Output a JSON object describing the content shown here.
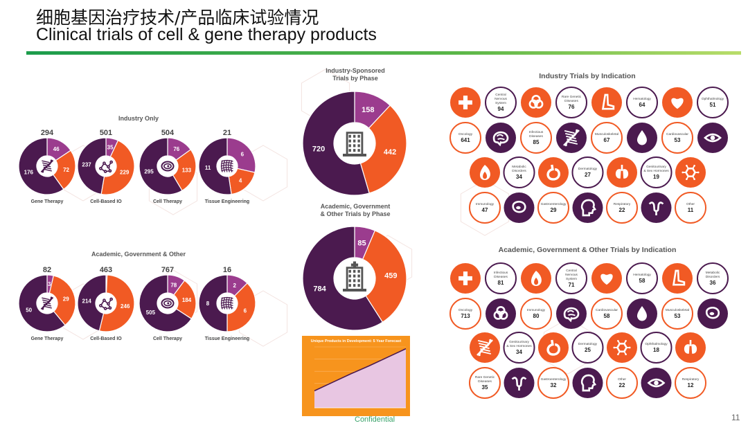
{
  "slide": {
    "title_cn": "细胞基因治疗技术/产品临床试验情况",
    "title_en": "Clinical trials of cell & gene therapy products",
    "confidential": "Confidential",
    "page_number": "11"
  },
  "colors": {
    "purple": "#4b1a4f",
    "orange": "#f15a24",
    "magenta": "#9b3c8e",
    "rule_green": "#3aa34a"
  },
  "chart_data": [
    {
      "id": "industry-only",
      "type": "pie",
      "title": "Industry Only",
      "charts": [
        {
          "label": "Gene Therapy",
          "total": 294,
          "icon": "dna-icon",
          "slices": [
            {
              "value": 46,
              "color": "#9b3c8e"
            },
            {
              "value": 72,
              "color": "#f15a24"
            },
            {
              "value": 176,
              "color": "#4b1a4f"
            }
          ]
        },
        {
          "label": "Cell-Based IO",
          "total": 501,
          "icon": "molecule-icon",
          "slices": [
            {
              "value": 35,
              "color": "#9b3c8e"
            },
            {
              "value": 229,
              "color": "#f15a24"
            },
            {
              "value": 237,
              "color": "#4b1a4f"
            }
          ]
        },
        {
          "label": "Cell Therapy",
          "total": 504,
          "icon": "cell-icon",
          "slices": [
            {
              "value": 76,
              "color": "#9b3c8e"
            },
            {
              "value": 133,
              "color": "#f15a24"
            },
            {
              "value": 295,
              "color": "#4b1a4f"
            }
          ]
        },
        {
          "label": "Tissue Engineering",
          "total": 21,
          "icon": "tissue-icon",
          "slices": [
            {
              "value": 6,
              "color": "#9b3c8e"
            },
            {
              "value": 4,
              "color": "#f15a24"
            },
            {
              "value": 11,
              "color": "#4b1a4f"
            }
          ]
        }
      ]
    },
    {
      "id": "academic-other",
      "type": "pie",
      "title": "Academic, Government & Other",
      "charts": [
        {
          "label": "Gene Therapy",
          "total": 82,
          "icon": "dna-icon",
          "slices": [
            {
              "value": 3,
              "color": "#9b3c8e"
            },
            {
              "value": 29,
              "color": "#f15a24"
            },
            {
              "value": 50,
              "color": "#4b1a4f"
            }
          ]
        },
        {
          "label": "Cell-Based IO",
          "total": 463,
          "icon": "molecule-icon",
          "slices": [
            {
              "value": 3,
              "color": "#9b3c8e"
            },
            {
              "value": 246,
              "color": "#f15a24"
            },
            {
              "value": 214,
              "color": "#4b1a4f"
            }
          ]
        },
        {
          "label": "Cell Therapy",
          "total": 767,
          "icon": "cell-icon",
          "slices": [
            {
              "value": 78,
              "color": "#9b3c8e"
            },
            {
              "value": 184,
              "color": "#f15a24"
            },
            {
              "value": 505,
              "color": "#4b1a4f"
            }
          ]
        },
        {
          "label": "Tissue Engineering",
          "total": 16,
          "icon": "tissue-icon",
          "slices": [
            {
              "value": 2,
              "color": "#9b3c8e"
            },
            {
              "value": 6,
              "color": "#f15a24"
            },
            {
              "value": 8,
              "color": "#4b1a4f"
            }
          ]
        }
      ]
    },
    {
      "id": "industry-phase",
      "type": "pie",
      "title": "Industry-Sponsored\nTrials by Phase",
      "icon": "building-icon",
      "slices": [
        {
          "value": 158,
          "color": "#9b3c8e"
        },
        {
          "value": 442,
          "color": "#f15a24"
        },
        {
          "value": 720,
          "color": "#4b1a4f"
        }
      ]
    },
    {
      "id": "academic-phase",
      "type": "pie",
      "title": "Academic, Government\n& Other Trials by Phase",
      "icon": "hospital-icon",
      "slices": [
        {
          "value": 85,
          "color": "#9b3c8e"
        },
        {
          "value": 459,
          "color": "#f15a24"
        },
        {
          "value": 784,
          "color": "#4b1a4f"
        }
      ]
    },
    {
      "id": "forecast",
      "type": "area",
      "title": "Unique Products in Development: 5 Year Forecast",
      "x": [
        0,
        1,
        2,
        3,
        4,
        5
      ],
      "values": [
        0.28,
        0.42,
        0.56,
        0.69,
        0.83,
        0.97
      ],
      "ylim": [
        0,
        1
      ]
    },
    {
      "id": "industry-indication",
      "type": "table",
      "title": "Industry Trials by Indication",
      "rows": [
        {
          "icons": [
            "medical-cross-icon",
            "biohazard-icon",
            "foot-icon",
            "heart-icon"
          ],
          "items": [
            {
              "label": "Oncology",
              "value": "641"
            },
            {
              "label": "Central\nNervous\nSystem",
              "value": "94"
            },
            {
              "label": "Infectious\nDiseases",
              "value": "85"
            },
            {
              "label": "Rare Genetic\nDiseases",
              "value": "76"
            },
            {
              "label": "Musculoskeletal",
              "value": "67"
            },
            {
              "label": "Hematology",
              "value": "64"
            },
            {
              "label": "Cardiovascular",
              "value": "53"
            },
            {
              "label": "Ophthalmology",
              "value": "51"
            }
          ]
        },
        {
          "icons": [
            "flame-icon",
            "stomach-icon",
            "lungs-icon",
            "hexagon-molecule-icon"
          ],
          "items": [
            {
              "label": "Immunology",
              "value": "47"
            },
            {
              "label": "Metabolic\nDisorders",
              "value": "34"
            },
            {
              "label": "Gastroenterology",
              "value": "29"
            },
            {
              "label": "Dermatology",
              "value": "27"
            },
            {
              "label": "Respiratory",
              "value": "22"
            },
            {
              "label": "Genitourinary\n& Sex Hormones",
              "value": "19"
            },
            {
              "label": "Other",
              "value": "11"
            }
          ]
        }
      ]
    },
    {
      "id": "academic-indication",
      "type": "table",
      "title": "Academic, Government & Other Trials by Indication",
      "rows": [
        {
          "icons": [
            "medical-cross-icon",
            "flame-icon",
            "heart-icon",
            "foot-icon"
          ],
          "items": [
            {
              "label": "Oncology",
              "value": "713"
            },
            {
              "label": "Infectious\nDiseases",
              "value": "81"
            },
            {
              "label": "Immunology",
              "value": "80"
            },
            {
              "label": "Central\nNervous\nSystem",
              "value": "71"
            },
            {
              "label": "Cardiovascular",
              "value": "58"
            },
            {
              "label": "Hematology",
              "value": "58"
            },
            {
              "label": "Musculoskeletal",
              "value": "53"
            },
            {
              "label": "Metabolic\nDisorders",
              "value": "36"
            }
          ]
        },
        {
          "icons": [
            "dna-icon",
            "stomach-icon",
            "hexagon-molecule-icon",
            "lungs-icon"
          ],
          "items": [
            {
              "label": "Rare Genetic\nDiseases",
              "value": "35"
            },
            {
              "label": "Genitourinary\n& Sex Hormones",
              "value": "34"
            },
            {
              "label": "Gastroenterology",
              "value": "32"
            },
            {
              "label": "Dermatology",
              "value": "25"
            },
            {
              "label": "Other",
              "value": "22"
            },
            {
              "label": "Ophthalmology",
              "value": "18"
            },
            {
              "label": "Respiratory",
              "value": "12"
            }
          ]
        }
      ]
    }
  ]
}
